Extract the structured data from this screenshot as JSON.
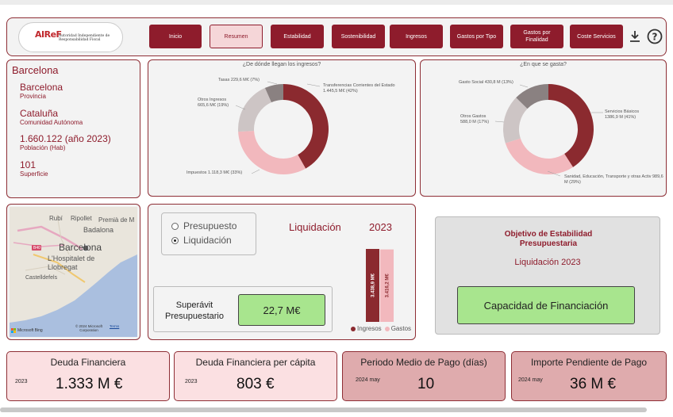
{
  "nav": {
    "logo_text": "AIReF",
    "logo_subtitle": "Autoridad Independiente de Responsabilidad Fiscal",
    "buttons": [
      "Inicio",
      "Resumen",
      "Estabilidad",
      "Sostenibilidad",
      "Ingresos",
      "Gastos por Tipo",
      "Gastos por Finalidad",
      "Coste Servicios"
    ],
    "active_button": "Resumen",
    "download_icon": "download-icon",
    "help_icon": "help-icon"
  },
  "info": {
    "title": "Barcelona",
    "province_value": "Barcelona",
    "province_label": "Provincia",
    "community_value": "Cataluña",
    "community_label": "Comunidad Autónoma",
    "population_value": "1.660.122 (año 2023)",
    "population_label": "Población (Hab)",
    "surface_value": "101",
    "surface_label": "Superficie"
  },
  "income_chart": {
    "title": "¿De dónde llegan los ingresos?",
    "labels": {
      "tasas": "Tasas 229,6 M€ (7%)",
      "transferencias": "Transferencias Corrientes del Estado 1.445,5 M€ (42%)",
      "otros": "Otros Ingresos 665,6 M€ (19%)",
      "impuestos": "Impuestos 1.118,3 M€ (33%)"
    }
  },
  "spending_chart": {
    "title": "¿En que se gasta?",
    "labels": {
      "gasto_social": "Gasto Social 430,8 M (13%)",
      "otros": "Otros Gastos 588,0 M (17%)",
      "servicios": "Servicios Básicos 1386,9 M (41%)",
      "sanidad": "Sanidad, Educación, Transporte y otras Activ 989,6 M (29%)"
    }
  },
  "chart_data": [
    {
      "type": "pie",
      "title": "¿De dónde llegan los ingresos?",
      "categories": [
        "Transferencias Corrientes del Estado",
        "Impuestos",
        "Otros Ingresos",
        "Tasas"
      ],
      "values": [
        1445.5,
        1118.3,
        665.6,
        229.6
      ],
      "units": "M€",
      "colors": [
        "#8b2a2f",
        "#f2b8bd",
        "#cdc5c5",
        "#8a8181"
      ]
    },
    {
      "type": "pie",
      "title": "¿En que se gasta?",
      "categories": [
        "Servicios Básicos",
        "Sanidad, Educación, Transporte y otras Activ",
        "Otros Gastos",
        "Gasto Social"
      ],
      "values": [
        1386.9,
        989.6,
        588.0,
        430.8
      ],
      "units": "M",
      "colors": [
        "#8b2a2f",
        "#f2b8bd",
        "#cdc5c5",
        "#8a8181"
      ]
    },
    {
      "type": "bar",
      "categories": [
        "Ingresos",
        "Gastos"
      ],
      "values": [
        3438.9,
        3416.2
      ],
      "value_labels": [
        "3.438,9 M€",
        "3.416,2 M€"
      ],
      "colors": [
        "#8b2a2f",
        "#f2b8bd"
      ]
    }
  ],
  "map": {
    "places": [
      "Rubí",
      "Ripollet",
      "Premià de M",
      "Badalona",
      "Barcelona",
      "L'Hospitalet de Llobregat",
      "Castelldefels"
    ],
    "road_label": "B40",
    "copyright": "© 2024 Microsoft Corporation",
    "terms": "Terms",
    "brand": "Microsoft Bing"
  },
  "mode": {
    "options": [
      "Presupuesto",
      "Liquidación"
    ],
    "selected": "Liquidación",
    "heading": "Liquidación",
    "year": "2023",
    "result_label": "Superávit Presupuestario",
    "result_value": "22,7 M€",
    "legend": [
      "Ingresos",
      "Gastos"
    ]
  },
  "stability": {
    "title": "Objetivo de Estabilidad Presupuestaria",
    "subtitle": "Liquidación 2023",
    "result": "Capacidad de Financiación"
  },
  "kpis": [
    {
      "title": "Deuda Financiera",
      "period": "2023",
      "value": "1.333 M €"
    },
    {
      "title": "Deuda Financiera per cápita",
      "period": "2023",
      "value": "803 €"
    },
    {
      "title": "Periodo Medio de Pago (días)",
      "period": "2024 may",
      "value": "10"
    },
    {
      "title": "Importe Pendiente de Pago",
      "period": "2024 may",
      "value": "36 M €"
    }
  ],
  "colors": {
    "primary": "#8e1c2c",
    "pink": "#f2b8bd",
    "green": "#a8e58e",
    "kpi_light": "#fbe0e2",
    "kpi_dark": "#dfabad"
  }
}
